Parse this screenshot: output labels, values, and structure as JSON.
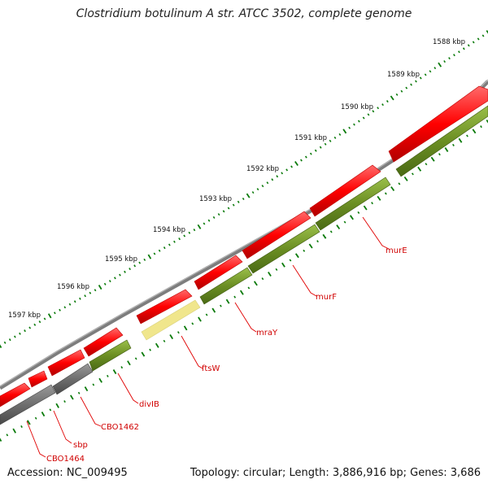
{
  "title": "Clostridium botulinum A str. ATCC 3502, complete genome",
  "accession": "Accession: NC_009495",
  "topology": "Topology: circular; Length: 3,886,916 bp; Genes: 3,686",
  "colors": {
    "backbone": "#8a8a8a",
    "forward_cds": "#ff0000",
    "gene_green": "#6b8e23",
    "gene_grey": "#6e6e6e",
    "gene_highlight": "#f0e68c",
    "tick": "#0a7a0a",
    "label": "#d00000"
  },
  "ruler": {
    "labels": [
      "1588 kbp",
      "1589 kbp",
      "1590 kbp",
      "1591 kbp",
      "1592 kbp",
      "1593 kbp",
      "1594 kbp",
      "1595 kbp",
      "1596 kbp",
      "1597 kbp"
    ]
  },
  "gene_labels": [
    "murE",
    "murF",
    "mraY",
    "ftsW",
    "divIB",
    "CBO1462",
    "sbp",
    "CBO1464"
  ]
}
